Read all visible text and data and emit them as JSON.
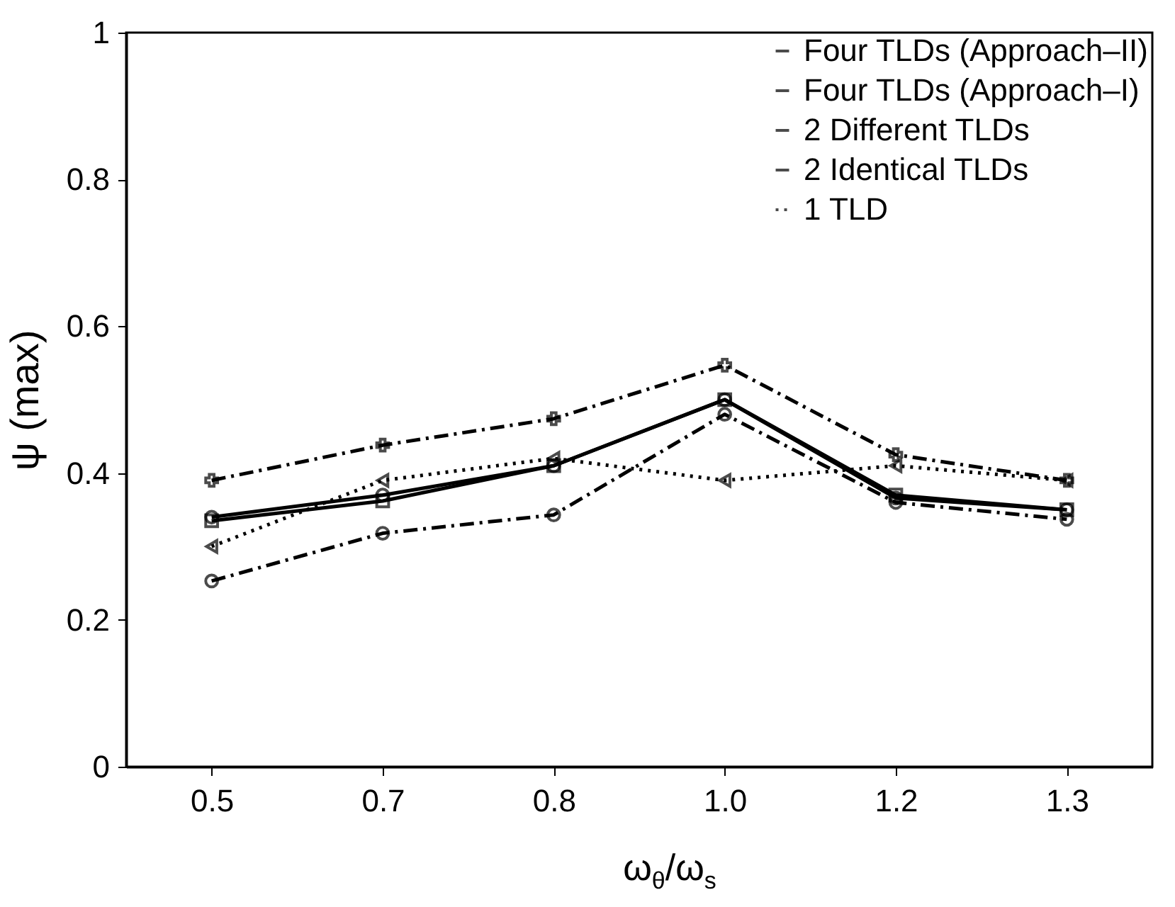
{
  "chart_data": {
    "type": "line",
    "xlabel": "ω$_{θ}$/ω$_{s}$",
    "ylabel": "ψ (max)",
    "categories": [
      "0.5",
      "0.7",
      "0.8",
      "1.0",
      "1.2",
      "1.3"
    ],
    "ylim": [
      0,
      1
    ],
    "yticks": [
      0,
      0.2,
      0.4,
      0.6,
      0.8,
      1
    ],
    "grid": false,
    "legend": "top right",
    "series": [
      {
        "name": "Four TLDs (Approach–II)",
        "color": "#000000",
        "marker": "circle",
        "line_style": "solid",
        "values": [
          0.34,
          0.37,
          0.41,
          0.5,
          0.366,
          0.35
        ]
      },
      {
        "name": "Four TLDs (Approach–I)",
        "color": "#000000",
        "marker": "square",
        "line_style": "solid",
        "values": [
          0.335,
          0.362,
          0.41,
          0.5,
          0.37,
          0.35
        ]
      },
      {
        "name": "2 Different TLDs",
        "color": "#000000",
        "marker": "cross",
        "line_style": "dashed",
        "values": [
          0.39,
          0.438,
          0.474,
          0.547,
          0.425,
          0.39
        ]
      },
      {
        "name": "2 Identical TLDs",
        "color": "#000000",
        "marker": "circle",
        "line_style": "dashed",
        "values": [
          0.253,
          0.318,
          0.343,
          0.48,
          0.36,
          0.337
        ]
      },
      {
        "name": "1 TLD",
        "color": "#000000",
        "marker": "triangle",
        "line_style": "dotted",
        "values": [
          0.3,
          0.39,
          0.42,
          0.39,
          0.41,
          0.39
        ]
      }
    ]
  }
}
